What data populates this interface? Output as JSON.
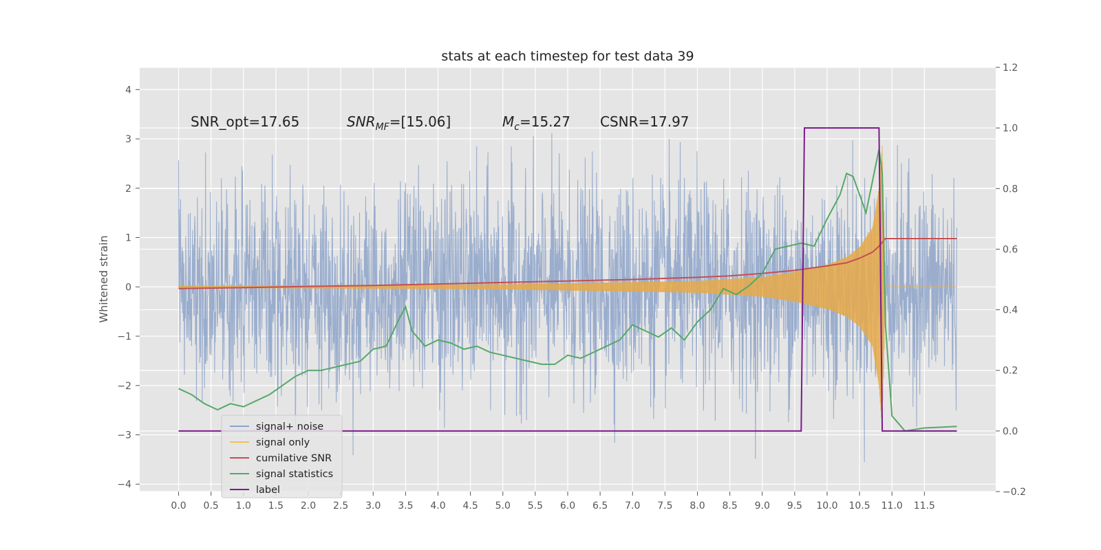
{
  "chart_data": {
    "type": "line",
    "title": "stats at each timestep for test data 39",
    "xlabel": "",
    "ylabel": "Whitened strain",
    "xlim": [
      -0.6,
      12.6
    ],
    "ylim": [
      -4.15,
      4.45
    ],
    "y2lim": [
      -0.2,
      1.2
    ],
    "grid": true,
    "legend_position": "lower-left",
    "x_ticks": [
      "0.0",
      "0.5",
      "1.0",
      "1.5",
      "2.0",
      "2.5",
      "3.0",
      "3.5",
      "4.0",
      "4.5",
      "5.0",
      "5.5",
      "6.0",
      "6.5",
      "7.0",
      "7.5",
      "8.0",
      "8.5",
      "9.0",
      "9.5",
      "10.0",
      "10.5",
      "11.0",
      "11.5"
    ],
    "y_ticks": [
      "4",
      "3",
      "2",
      "1",
      "0",
      "−1",
      "−2",
      "−3",
      "−4"
    ],
    "y2_ticks": [
      "1.2",
      "1.0",
      "0.8",
      "0.6",
      "0.4",
      "0.2",
      "0.0",
      "−0.2"
    ],
    "annotations": {
      "snr_opt": "SNR_opt=17.65",
      "snr_mf_main": "SNR",
      "snr_mf_sub": "MF",
      "snr_mf_value": "=[15.06]",
      "mc_main": "M",
      "mc_sub": "c",
      "mc_value": "=15.27",
      "csnr": "CSNR=17.97"
    },
    "series": [
      {
        "name": "signal+ noise",
        "color": "#8da3c9",
        "axis": "left",
        "description_points": "noise envelope approx ±2 to ±3 with spikes",
        "x": [
          0,
          12
        ],
        "values": [
          0,
          0
        ]
      },
      {
        "name": "signal only",
        "color": "#e8a948",
        "axis": "left",
        "x": [
          0,
          5,
          8,
          9,
          9.5,
          10,
          10.3,
          10.5,
          10.7,
          10.8,
          10.85,
          10.9,
          12
        ],
        "values": [
          0.02,
          0.05,
          0.12,
          0.2,
          0.3,
          0.45,
          0.6,
          0.8,
          1.2,
          2.0,
          2.9,
          0.0,
          0.0
        ]
      },
      {
        "name": "cumilative SNR",
        "color": "#c44e52",
        "axis": "right",
        "x": [
          0,
          1,
          2,
          3,
          4,
          5,
          6,
          7,
          8,
          8.5,
          9,
          9.5,
          10,
          10.3,
          10.5,
          10.7,
          10.8,
          10.9,
          12
        ],
        "values": [
          0.47,
          0.473,
          0.477,
          0.48,
          0.485,
          0.49,
          0.495,
          0.5,
          0.507,
          0.512,
          0.52,
          0.53,
          0.545,
          0.555,
          0.57,
          0.59,
          0.61,
          0.635,
          0.635
        ]
      },
      {
        "name": "signal statistics",
        "color": "#55a868",
        "axis": "right",
        "x": [
          0,
          0.2,
          0.4,
          0.5,
          0.6,
          0.8,
          1.0,
          1.2,
          1.4,
          1.6,
          1.8,
          2.0,
          2.2,
          2.4,
          2.6,
          2.8,
          3.0,
          3.2,
          3.4,
          3.5,
          3.6,
          3.8,
          4.0,
          4.2,
          4.4,
          4.6,
          4.8,
          5.0,
          5.2,
          5.4,
          5.6,
          5.8,
          6.0,
          6.2,
          6.4,
          6.6,
          6.8,
          7.0,
          7.2,
          7.4,
          7.6,
          7.8,
          8.0,
          8.2,
          8.4,
          8.6,
          8.8,
          9.0,
          9.2,
          9.4,
          9.6,
          9.8,
          10.0,
          10.2,
          10.3,
          10.4,
          10.6,
          10.8,
          10.85,
          10.9,
          11.0,
          11.2,
          11.5,
          12.0
        ],
        "values": [
          0.14,
          0.12,
          0.09,
          0.08,
          0.07,
          0.09,
          0.08,
          0.1,
          0.12,
          0.15,
          0.18,
          0.2,
          0.2,
          0.21,
          0.22,
          0.23,
          0.27,
          0.28,
          0.37,
          0.41,
          0.33,
          0.28,
          0.3,
          0.29,
          0.27,
          0.28,
          0.26,
          0.25,
          0.24,
          0.23,
          0.22,
          0.22,
          0.25,
          0.24,
          0.26,
          0.28,
          0.3,
          0.35,
          0.33,
          0.31,
          0.34,
          0.3,
          0.36,
          0.4,
          0.47,
          0.45,
          0.48,
          0.52,
          0.6,
          0.61,
          0.62,
          0.61,
          0.7,
          0.78,
          0.85,
          0.84,
          0.72,
          0.93,
          0.85,
          0.35,
          0.05,
          0.0,
          0.01,
          0.015
        ]
      },
      {
        "name": "label",
        "color": "#7b1a8b",
        "axis": "right",
        "x": [
          0,
          9.6,
          9.65,
          10.8,
          10.85,
          12
        ],
        "values": [
          0,
          0,
          1,
          1,
          0,
          0
        ]
      }
    ]
  },
  "legend": {
    "items": [
      {
        "label": "signal+ noise",
        "color": "#8da3c9"
      },
      {
        "label": "signal only",
        "color": "#f0c060"
      },
      {
        "label": "cumilative SNR",
        "color": "#c44e52"
      },
      {
        "label": "signal statistics",
        "color": "#55a868"
      },
      {
        "label": "label",
        "color": "#7b1a8b"
      }
    ]
  }
}
